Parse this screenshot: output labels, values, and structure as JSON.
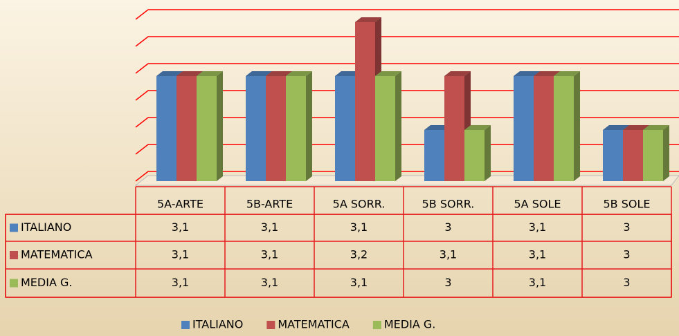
{
  "chart_data": {
    "type": "bar3d",
    "categories": [
      "5A-ARTE",
      "5B-ARTE",
      "5A SORR.",
      "5B SORR.",
      "5A SOLE",
      "5B SOLE"
    ],
    "series": [
      {
        "name": "ITALIANO",
        "color": "#4f81bd",
        "values": [
          3.1,
          3.1,
          3.1,
          3,
          3.1,
          3
        ],
        "value_labels": [
          "3,1",
          "3,1",
          "3,1",
          "3",
          "3,1",
          "3"
        ]
      },
      {
        "name": "MATEMATICA",
        "color": "#c0504d",
        "values": [
          3.1,
          3.1,
          3.2,
          3.1,
          3.1,
          3
        ],
        "value_labels": [
          "3,1",
          "3,1",
          "3,2",
          "3,1",
          "3,1",
          "3"
        ]
      },
      {
        "name": "MEDIA G.",
        "color": "#9bbb59",
        "values": [
          3.1,
          3.1,
          3.1,
          3,
          3.1,
          3
        ],
        "value_labels": [
          "3,1",
          "3,1",
          "3,1",
          "3",
          "3,1",
          "3"
        ]
      }
    ],
    "ylim": [
      2.9,
      3.2
    ],
    "yticks": [
      2.9,
      2.95,
      3,
      3.05,
      3.1,
      3.15,
      3.2
    ],
    "grid": true,
    "grid_color": "#ff0000",
    "legend": "bottom",
    "data_table": true
  }
}
